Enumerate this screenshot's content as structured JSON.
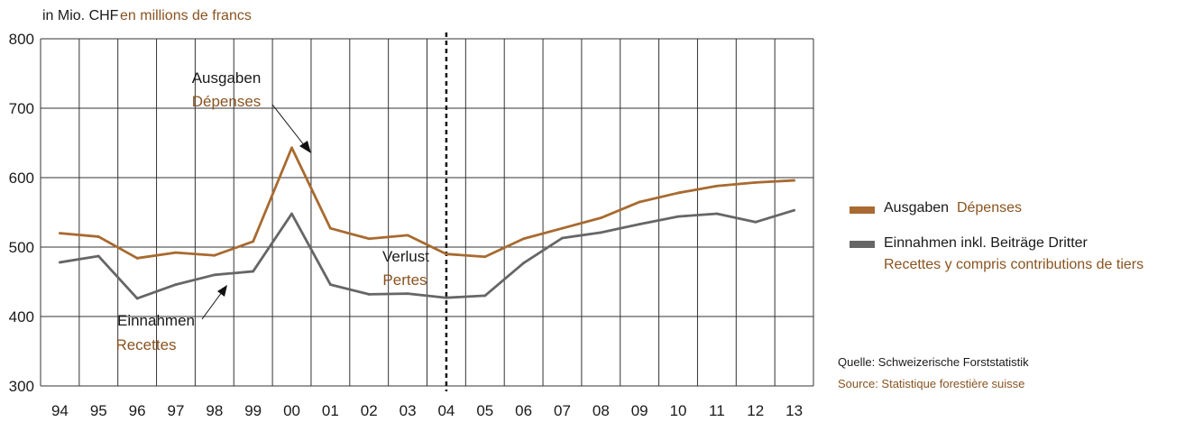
{
  "unit": {
    "de": "in Mio. CHF",
    "fr": "en millions de francs"
  },
  "colors": {
    "expenses": "#a86a30",
    "revenues": "#666666",
    "grid": "#333333",
    "fr_text": "#8a5320"
  },
  "chart_data": {
    "type": "line",
    "categories": [
      "94",
      "95",
      "96",
      "97",
      "98",
      "99",
      "00",
      "01",
      "02",
      "03",
      "04",
      "05",
      "06",
      "07",
      "08",
      "09",
      "10",
      "11",
      "12",
      "13"
    ],
    "ylim": [
      300,
      800
    ],
    "yticks": [
      "300",
      "400",
      "500",
      "600",
      "700",
      "800"
    ],
    "divider_at": "04",
    "series": [
      {
        "name": "Ausgaben Dépenses",
        "color": "#a86a30",
        "values": [
          520,
          515,
          484,
          492,
          488,
          508,
          643,
          527,
          512,
          517,
          490,
          486,
          512,
          527,
          542,
          565,
          578,
          588,
          593,
          596
        ]
      },
      {
        "name": "Einnahmen inkl. Beiträge Dritter Recettes y compris contributions de tiers",
        "color": "#666666",
        "values": [
          478,
          487,
          426,
          446,
          460,
          465,
          548,
          446,
          432,
          433,
          427,
          430,
          477,
          513,
          521,
          533,
          544,
          548,
          536,
          553
        ]
      }
    ],
    "annotations": {
      "expenses": {
        "de": "Ausgaben",
        "fr": "Dépenses"
      },
      "revenues": {
        "de": "Einnahmen",
        "fr": "Recettes"
      },
      "loss": {
        "de": "Verlust",
        "fr": "Pertes"
      }
    }
  },
  "legend": [
    {
      "de": "Ausgaben",
      "fr": "Dépenses",
      "color": "#a86a30"
    },
    {
      "de": "Einnahmen inkl. Beiträge Dritter",
      "fr": "Recettes y compris contributions de tiers",
      "color": "#666666"
    }
  ],
  "source": {
    "de": "Quelle: Schweizerische Forststatistik",
    "fr": "Source: Statistique forestière suisse"
  }
}
